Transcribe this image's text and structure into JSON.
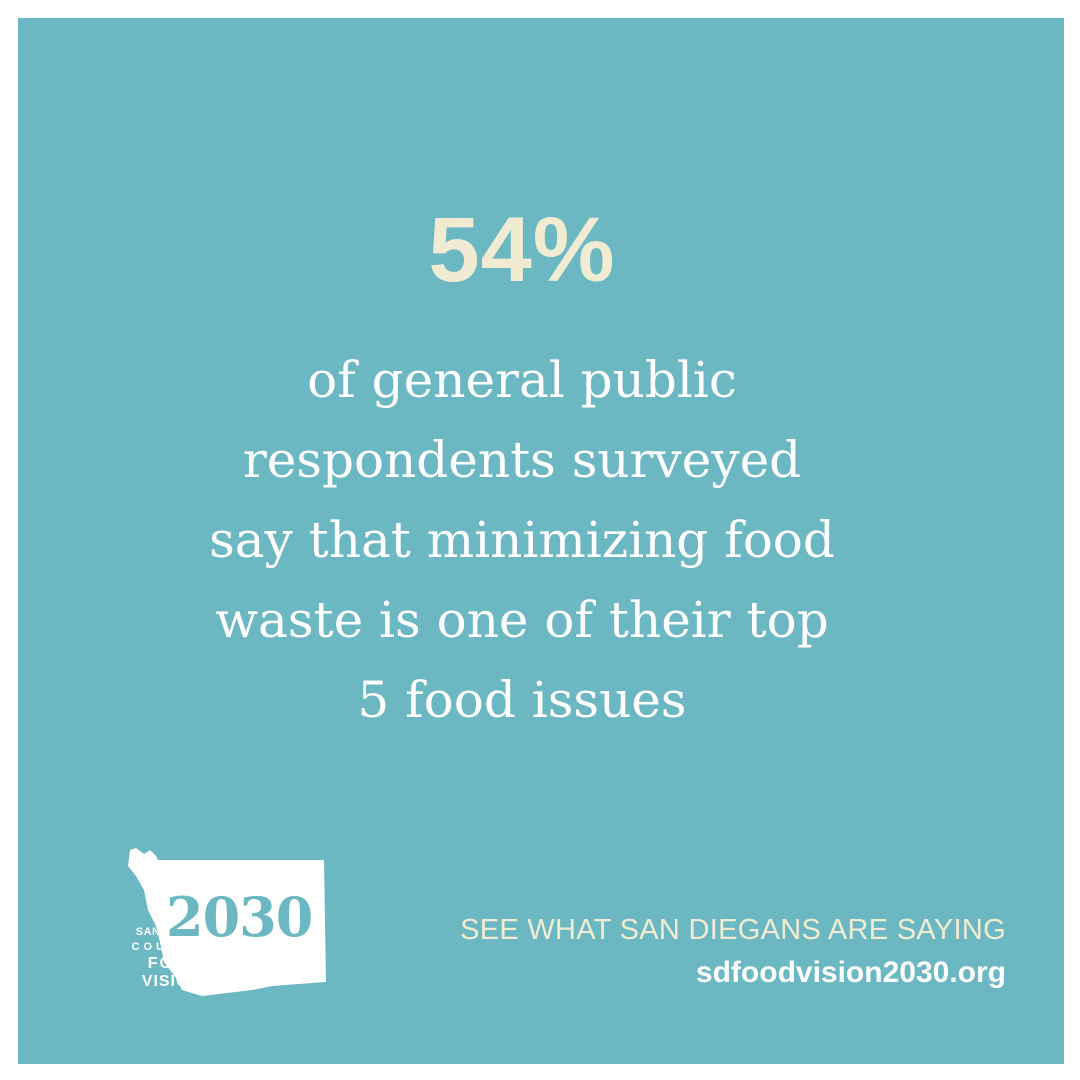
{
  "stat": {
    "value": "54%"
  },
  "body": {
    "lines": [
      "of general public",
      "respondents surveyed",
      "say that minimizing food",
      "waste is one of their top",
      "5 food issues"
    ]
  },
  "logo": {
    "line1": "SAN DIEGO",
    "line2": "COUNTY",
    "line3": "FOOD",
    "line4": "VISION",
    "year": "2030",
    "icon": "san-diego-county-map-icon"
  },
  "footer": {
    "cta": "SEE WHAT SAN DIEGANS ARE SAYING",
    "url": "sdfoodvision2030.org"
  },
  "colors": {
    "background": "#6bb8c2",
    "accent": "#f1ecd1",
    "text": "#ffffff"
  }
}
